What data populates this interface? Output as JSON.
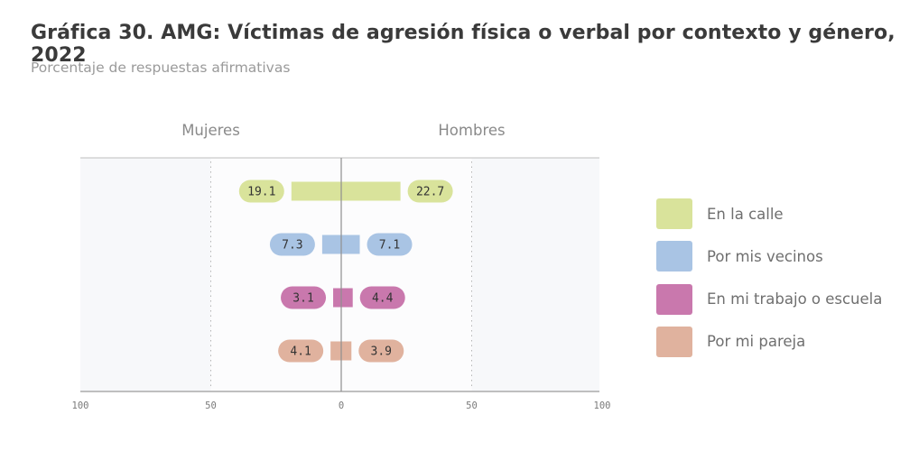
{
  "title": "Gráfica 30. AMG: Víctimas de agresión física o verbal por contexto y género, 2022",
  "subtitle": "Porcentaje de respuestas afirmativas",
  "chart_data": {
    "type": "bar",
    "orientation": "horizontal-diverging",
    "categories": [
      "En la calle",
      "Por mis vecinos",
      "En mi trabajo o escuela",
      "Por mi pareja"
    ],
    "groups": [
      "Mujeres",
      "Hombres"
    ],
    "series": [
      {
        "name": "Mujeres",
        "values": [
          19.1,
          7.3,
          3.1,
          4.1
        ]
      },
      {
        "name": "Hombres",
        "values": [
          22.7,
          7.1,
          4.4,
          3.9
        ]
      }
    ],
    "colors": [
      "#d9e39b",
      "#a9c4e4",
      "#c978ad",
      "#e0b29e"
    ],
    "label_text_color": "#333333",
    "xlim": [
      -100,
      100
    ],
    "xticks": [
      100,
      50,
      0,
      50,
      100
    ],
    "grid": true,
    "legend_position": "right"
  },
  "legend": {
    "items": [
      {
        "label": "En la calle",
        "color": "#d9e39b"
      },
      {
        "label": "Por mis vecinos",
        "color": "#a9c4e4"
      },
      {
        "label": "En mi trabajo o escuela",
        "color": "#c978ad"
      },
      {
        "label": "Por mi pareja",
        "color": "#e0b29e"
      }
    ]
  }
}
